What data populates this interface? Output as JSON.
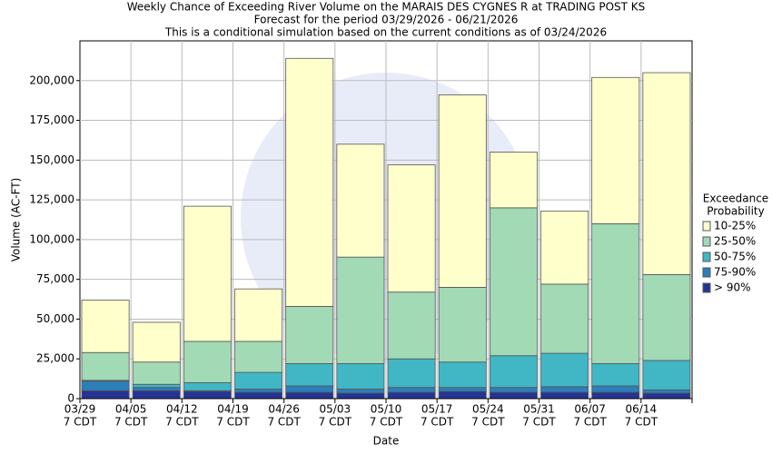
{
  "chart_data": {
    "type": "stacked_bar",
    "title": [
      "Weekly Chance of Exceeding River Volume on the MARAIS DES CYGNES R at TRADING POST KS",
      "Forecast for the period 03/29/2026 - 06/21/2026",
      "This is a conditional simulation based on the current conditions as of 03/24/2026"
    ],
    "x_label": "Date",
    "y_label": "Volume (AC-FT)",
    "legend_title": [
      "Exceedance",
      "Probability"
    ],
    "legend": "right",
    "grid": true,
    "categories": [
      [
        "03/29",
        "7 CDT"
      ],
      [
        "04/05",
        "7 CDT"
      ],
      [
        "04/12",
        "7 CDT"
      ],
      [
        "04/19",
        "7 CDT"
      ],
      [
        "04/26",
        "7 CDT"
      ],
      [
        "05/03",
        "7 CDT"
      ],
      [
        "05/10",
        "7 CDT"
      ],
      [
        "05/17",
        "7 CDT"
      ],
      [
        "05/24",
        "7 CDT"
      ],
      [
        "05/31",
        "7 CDT"
      ],
      [
        "06/07",
        "7 CDT"
      ],
      [
        "06/14",
        "7 CDT"
      ]
    ],
    "ylim": [
      0,
      225000
    ],
    "yticks": [
      0,
      {
        "value": 25000,
        "label": "25,000"
      },
      {
        "value": 50000,
        "label": "50,000"
      },
      {
        "value": 75000,
        "label": "75,000"
      },
      {
        "value": 100000,
        "label": "100,000"
      },
      {
        "value": 125000,
        "label": "125,000"
      },
      {
        "value": 150000,
        "label": "150,000"
      },
      {
        "value": 175000,
        "label": "175,000"
      },
      {
        "value": 200000,
        "label": "200,000"
      }
    ],
    "series": [
      {
        "name": "> 90%",
        "color": "#253494",
        "values": [
          5000,
          5000,
          4500,
          4000,
          4000,
          3500,
          4000,
          4500,
          4000,
          4000,
          4000,
          3500
        ]
      },
      {
        "name": "75-90%",
        "color": "#2c7fb8",
        "values": [
          6000,
          2000,
          500,
          2000,
          4000,
          2500,
          3000,
          2500,
          3000,
          3500,
          4000,
          2000
        ]
      },
      {
        "name": "50-75%",
        "color": "#41b6c4",
        "values": [
          500,
          2000,
          5000,
          10500,
          14000,
          16000,
          18000,
          16000,
          20000,
          21000,
          14000,
          18500
        ]
      },
      {
        "name": "25-50%",
        "color": "#a1dab4",
        "values": [
          17500,
          14000,
          26000,
          19500,
          36000,
          67000,
          42000,
          47000,
          93000,
          43500,
          88000,
          54000
        ]
      },
      {
        "name": "10-25%",
        "color": "#ffffcc",
        "values": [
          33000,
          25000,
          85000,
          33000,
          156000,
          71000,
          80000,
          121000,
          35000,
          46000,
          92000,
          127000
        ]
      }
    ]
  }
}
